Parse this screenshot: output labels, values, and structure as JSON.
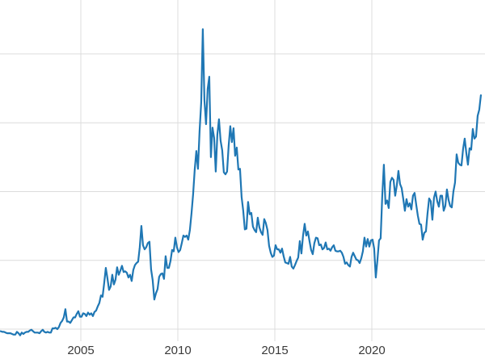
{
  "chart_data": {
    "type": "line",
    "title": "",
    "xlabel": "",
    "ylabel": "",
    "legend": "none",
    "grid": true,
    "background_color": "#ffffff",
    "line_color": "#1f77b4",
    "grid_color": "#dcdcdc",
    "tick_label_color": "#3a3a3a",
    "x_range": [
      2000.833,
      2025.833
    ],
    "y_range": [
      3.24,
      52.85
    ],
    "x_ticks": [
      2005,
      2010,
      2015,
      2020
    ],
    "x_tick_labels": [
      "2005",
      "2010",
      "2015",
      "2020"
    ],
    "y_gridlines": [
      5,
      15,
      25,
      35,
      45
    ],
    "x_start": 2000.871,
    "x_step": 0.083333,
    "values": [
      4.7,
      4.6,
      4.6,
      4.5,
      4.4,
      4.4,
      4.4,
      4.3,
      4.2,
      4.2,
      4.6,
      4.4,
      4.1,
      4.5,
      4.3,
      4.5,
      4.6,
      4.6,
      4.8,
      4.9,
      4.7,
      4.5,
      4.5,
      4.5,
      4.4,
      4.7,
      4.9,
      4.6,
      4.5,
      4.6,
      4.5,
      4.5,
      5.1,
      5.1,
      5.2,
      5.0,
      5.3,
      5.9,
      6.2,
      6.7,
      7.9,
      6.1,
      6.1,
      5.9,
      6.3,
      6.7,
      6.7,
      7.2,
      7.6,
      6.8,
      6.8,
      7.3,
      7.2,
      6.9,
      7.4,
      7.1,
      7.3,
      6.9,
      7.5,
      7.7,
      8.3,
      8.8,
      9.9,
      9.7,
      11.7,
      13.9,
      12.4,
      10.7,
      11.2,
      12.9,
      11.5,
      12.2,
      14.0,
      12.9,
      13.5,
      14.2,
      13.3,
      13.4,
      13.2,
      12.5,
      12.9,
      12.0,
      13.6,
      14.3,
      14.6,
      14.8,
      16.9,
      20.0,
      17.2,
      16.6,
      16.9,
      17.5,
      17.7,
      13.7,
      12.1,
      9.3,
      10.2,
      10.8,
      12.6,
      13.0,
      13.1,
      12.3,
      15.6,
      13.9,
      13.9,
      14.9,
      16.5,
      16.3,
      18.3,
      16.9,
      16.2,
      16.5,
      17.5,
      18.6,
      18.4,
      18.6,
      18.0,
      19.4,
      21.8,
      24.6,
      28.2,
      30.9,
      28.3,
      33.8,
      37.9,
      48.6,
      38.3,
      34.8,
      39.9,
      41.7,
      30.0,
      34.3,
      32.8,
      27.9,
      33.3,
      35.5,
      32.4,
      31.0,
      27.8,
      27.5,
      27.9,
      31.7,
      34.5,
      32.2,
      34.2,
      30.2,
      31.4,
      28.2,
      28.3,
      24.2,
      22.2,
      19.5,
      19.6,
      23.5,
      21.7,
      21.9,
      19.9,
      19.4,
      19.1,
      21.2,
      19.8,
      19.1,
      18.7,
      21.0,
      20.4,
      19.4,
      17.1,
      16.1,
      15.5,
      15.7,
      17.2,
      16.6,
      16.6,
      16.1,
      16.7,
      15.6,
      14.7,
      14.6,
      14.5,
      15.5,
      14.1,
      13.8,
      14.3,
      14.9,
      15.4,
      17.8,
      16.0,
      18.6,
      20.3,
      18.6,
      19.2,
      17.8,
      16.5,
      15.9,
      17.5,
      18.3,
      18.2,
      17.2,
      17.3,
      16.6,
      16.8,
      17.6,
      16.6,
      16.7,
      16.4,
      16.9,
      17.2,
      16.4,
      16.3,
      16.3,
      16.4,
      16.1,
      15.5,
      14.5,
      14.7,
      14.3,
      14.1,
      15.5,
      16.1,
      15.6,
      15.1,
      15.0,
      14.6,
      15.3,
      16.3,
      18.3,
      17.0,
      18.1,
      17.0,
      17.9,
      18.0,
      16.7,
      12.5,
      15.0,
      17.9,
      18.2,
      24.4,
      28.9,
      23.2,
      23.7,
      22.6,
      26.4,
      27.0,
      26.7,
      24.4,
      25.9,
      28.0,
      26.1,
      25.5,
      23.9,
      22.2,
      23.9,
      22.8,
      23.3,
      22.4,
      24.4,
      24.8,
      23.1,
      21.5,
      20.3,
      20.2,
      18.0,
      19.0,
      19.2,
      21.8,
      24.0,
      23.6,
      20.9,
      24.1,
      25.0,
      23.6,
      22.8,
      24.4,
      24.4,
      22.2,
      22.9,
      25.3,
      23.8,
      22.9,
      22.7,
      25.0,
      26.3,
      30.4,
      29.2,
      28.9,
      28.8,
      31.2,
      32.7,
      30.6,
      28.9,
      31.3,
      31.1,
      34.1,
      32.7,
      33.0,
      36.0,
      36.9,
      39.0
    ]
  }
}
